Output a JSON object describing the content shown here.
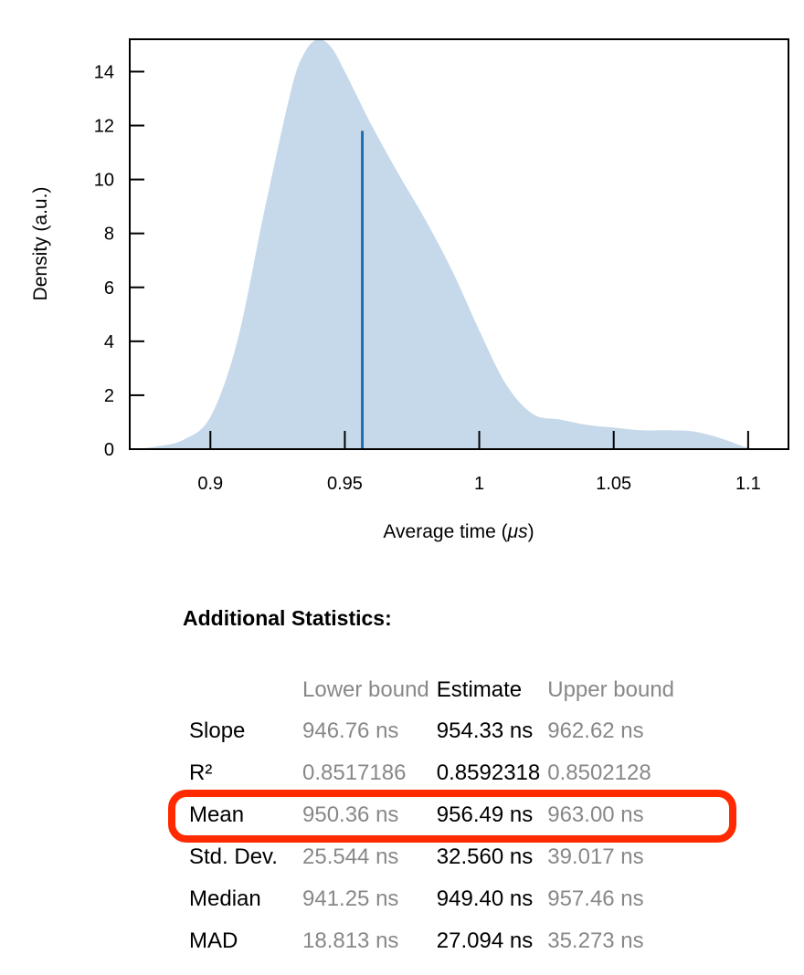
{
  "chart_data": {
    "type": "area",
    "title": "",
    "xlabel_prefix": "Average time (",
    "xlabel_unit": "μs",
    "xlabel_suffix": ")",
    "ylabel": "Density (a.u.)",
    "xlim": [
      0.87,
      1.115
    ],
    "ylim": [
      0,
      15.2
    ],
    "x_ticks": [
      "0.9",
      "0.95",
      "1",
      "1.05",
      "1.1"
    ],
    "y_ticks": [
      "0",
      "2",
      "4",
      "6",
      "8",
      "10",
      "12",
      "14"
    ],
    "fill_color": "#c6d9ea",
    "line_color": "#1f6fb4",
    "density": {
      "x": [
        0.872,
        0.88,
        0.89,
        0.9,
        0.91,
        0.92,
        0.93,
        0.935,
        0.94,
        0.945,
        0.95,
        0.955,
        0.96,
        0.97,
        0.98,
        0.99,
        1.0,
        1.01,
        1.02,
        1.03,
        1.04,
        1.05,
        1.06,
        1.07,
        1.08,
        1.09,
        1.1,
        1.107
      ],
      "y": [
        0.0,
        0.1,
        0.35,
        1.2,
        4.0,
        8.8,
        13.3,
        14.7,
        15.2,
        14.9,
        14.0,
        13.0,
        12.0,
        10.2,
        8.5,
        6.6,
        4.4,
        2.4,
        1.3,
        1.1,
        0.9,
        0.8,
        0.7,
        0.7,
        0.65,
        0.4,
        0.05,
        0.0
      ]
    },
    "mean_line": {
      "x": 0.9565,
      "y": 11.8
    }
  },
  "stats": {
    "title": "Additional Statistics:",
    "headers": {
      "lower": "Lower bound",
      "estimate": "Estimate",
      "upper": "Upper bound"
    },
    "rows": [
      {
        "label": "Slope",
        "lower": "946.76 ns",
        "estimate": "954.33 ns",
        "upper": "962.62 ns"
      },
      {
        "label": "R²",
        "lower": "0.8517186",
        "estimate": "0.8592318",
        "upper": "0.8502128"
      },
      {
        "label": "Mean",
        "lower": "950.36 ns",
        "estimate": "956.49 ns",
        "upper": "963.00 ns"
      },
      {
        "label": "Std. Dev.",
        "lower": "25.544 ns",
        "estimate": "32.560 ns",
        "upper": "39.017 ns"
      },
      {
        "label": "Median",
        "lower": "941.25 ns",
        "estimate": "949.40 ns",
        "upper": "957.46 ns"
      },
      {
        "label": "MAD",
        "lower": "18.813 ns",
        "estimate": "27.094 ns",
        "upper": "35.273 ns"
      }
    ]
  }
}
